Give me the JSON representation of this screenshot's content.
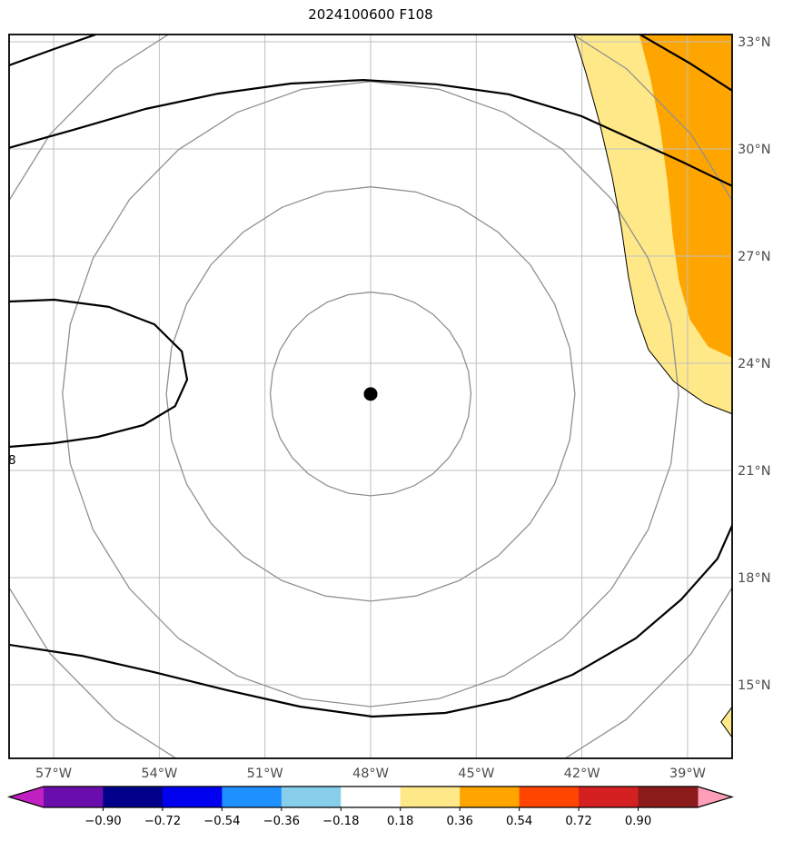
{
  "title": "2024100600 F108",
  "colors": {
    "grid": "#BFBFBF",
    "ring": "#909090",
    "contour": "#000000",
    "axis_label": "#4D4D4D",
    "marker": "#000000",
    "fill_yellow": "#FFE888",
    "fill_orange": "#FFA500"
  },
  "chart_data": {
    "type": "contour_map",
    "title": "2024100600 F108",
    "x_axis": {
      "ticks": [
        "57°W",
        "54°W",
        "51°W",
        "48°W",
        "45°W",
        "42°W",
        "39°W"
      ],
      "values": [
        -57,
        -54,
        -51,
        -48,
        -45,
        -42,
        -39
      ]
    },
    "y_axis": {
      "ticks": [
        "33°N",
        "30°N",
        "27°N",
        "24°N",
        "21°N",
        "18°N",
        "15°N"
      ],
      "values": [
        33,
        30,
        27,
        24,
        21,
        18,
        15
      ]
    },
    "extent": {
      "lon_min": -58.27,
      "lon_max": -37.73,
      "lat_min": 12.94,
      "lat_max": 33.2
    },
    "grid_on": true,
    "center_point": {
      "lon": -48.0,
      "lat": 23.14
    },
    "range_rings_deg": [
      2.85,
      5.8,
      8.75,
      11.65
    ],
    "contour_label": "8",
    "black_contours": [
      [
        [
          -58.27,
          32.34
        ],
        [
          -56.98,
          32.8
        ],
        [
          -55.82,
          33.2
        ]
      ],
      [
        [
          -58.27,
          30.03
        ],
        [
          -56.46,
          30.53
        ],
        [
          -54.4,
          31.12
        ],
        [
          -52.33,
          31.55
        ],
        [
          -50.27,
          31.83
        ],
        [
          -48.21,
          31.93
        ],
        [
          -46.14,
          31.81
        ],
        [
          -44.08,
          31.53
        ],
        [
          -42.02,
          30.92
        ],
        [
          -40.47,
          30.23
        ],
        [
          -39.18,
          29.65
        ],
        [
          -37.73,
          28.96
        ]
      ],
      [
        [
          -40.34,
          33.2
        ],
        [
          -38.92,
          32.39
        ],
        [
          -37.73,
          31.63
        ]
      ],
      [
        [
          -58.27,
          25.73
        ],
        [
          -56.98,
          25.78
        ],
        [
          -55.43,
          25.58
        ],
        [
          -54.14,
          25.09
        ],
        [
          -53.36,
          24.33
        ],
        [
          -53.21,
          23.54
        ],
        [
          -53.55,
          22.8
        ],
        [
          -54.45,
          22.27
        ],
        [
          -55.74,
          21.94
        ],
        [
          -57.03,
          21.76
        ],
        [
          -58.27,
          21.66
        ]
      ],
      [
        [
          -58.27,
          16.12
        ],
        [
          -56.2,
          15.81
        ],
        [
          -54.14,
          15.35
        ],
        [
          -52.08,
          14.85
        ],
        [
          -50.01,
          14.39
        ],
        [
          -47.95,
          14.11
        ],
        [
          -45.88,
          14.21
        ],
        [
          -44.08,
          14.59
        ],
        [
          -42.27,
          15.28
        ],
        [
          -40.47,
          16.3
        ],
        [
          -39.18,
          17.39
        ],
        [
          -38.15,
          18.53
        ],
        [
          -37.73,
          19.47
        ]
      ]
    ],
    "thin_contours": [
      [
        [
          -42.22,
          33.2
        ],
        [
          -41.89,
          32.14
        ],
        [
          -41.5,
          30.74
        ],
        [
          -41.14,
          29.21
        ],
        [
          -40.88,
          27.81
        ],
        [
          -40.68,
          26.42
        ],
        [
          -40.47,
          25.4
        ],
        [
          -40.11,
          24.38
        ],
        [
          -39.39,
          23.49
        ],
        [
          -38.51,
          22.88
        ],
        [
          -37.73,
          22.58
        ]
      ],
      [
        [
          -37.73,
          14.39
        ],
        [
          -38.05,
          13.96
        ],
        [
          -37.73,
          13.52
        ]
      ]
    ],
    "filled_regions": [
      {
        "level": "0.18 to 0.36",
        "color": "#FFE888",
        "points": [
          [
            -42.22,
            33.2
          ],
          [
            -41.89,
            32.14
          ],
          [
            -41.5,
            30.74
          ],
          [
            -41.14,
            29.21
          ],
          [
            -40.88,
            27.81
          ],
          [
            -40.68,
            26.42
          ],
          [
            -40.47,
            25.4
          ],
          [
            -40.11,
            24.38
          ],
          [
            -39.39,
            23.49
          ],
          [
            -38.51,
            22.88
          ],
          [
            -37.73,
            22.58
          ],
          [
            -37.73,
            33.2
          ]
        ]
      },
      {
        "level": "0.36 to 0.54",
        "color": "#FFA500",
        "points": [
          [
            -40.37,
            33.2
          ],
          [
            -40.06,
            32.01
          ],
          [
            -39.78,
            30.61
          ],
          [
            -39.57,
            29.08
          ],
          [
            -39.42,
            27.56
          ],
          [
            -39.24,
            26.29
          ],
          [
            -38.93,
            25.22
          ],
          [
            -38.41,
            24.46
          ],
          [
            -37.73,
            24.15
          ],
          [
            -37.73,
            33.2
          ]
        ]
      },
      {
        "level": "0.18 to 0.36",
        "color": "#FFE888",
        "points": [
          [
            -37.73,
            14.39
          ],
          [
            -38.05,
            13.96
          ],
          [
            -37.73,
            13.52
          ]
        ]
      }
    ],
    "colorbar": {
      "tick_labels": [
        "−0.90",
        "−0.72",
        "−0.54",
        "−0.36",
        "−0.18",
        "0.18",
        "0.36",
        "0.54",
        "0.72",
        "0.90"
      ],
      "tick_values": [
        -0.9,
        -0.72,
        -0.54,
        -0.36,
        -0.18,
        0.18,
        0.36,
        0.54,
        0.72,
        0.9
      ],
      "segment_colors": [
        "#6A0DAD",
        "#00008B",
        "#0000EE",
        "#1E90FF",
        "#87CEEB",
        "#FFFFFF",
        "#FFE888",
        "#FFA500",
        "#FF4500",
        "#D42020",
        "#8B1A1A"
      ],
      "extend_left_color": "#C020C0",
      "extend_right_color": "#FF9EB8"
    }
  }
}
